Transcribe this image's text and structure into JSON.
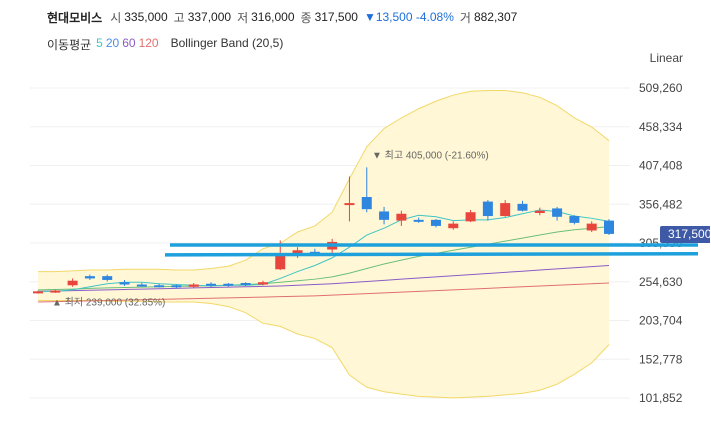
{
  "header": {
    "name": "현대모비스",
    "open_label": "시",
    "open": "335,000",
    "high_label": "고",
    "high": "337,000",
    "low_label": "저",
    "low": "316,000",
    "close_label": "종",
    "close": "317,500",
    "change": "▼13,500 -4.08%",
    "volume_label": "거",
    "volume": "882,307"
  },
  "indicators": {
    "ma_label": "이동평균",
    "ma_periods": [
      "5",
      "20",
      "60",
      "120"
    ],
    "ma_colors": [
      "#40c4c4",
      "#4a8fe0",
      "#8a5cc7",
      "#e07070"
    ],
    "bb_label": "Bollinger Band (20,5)"
  },
  "scale_label": "Linear",
  "last_price": "317,500",
  "colors": {
    "up": "#e8453c",
    "down": "#2e86de",
    "band_fill": "#fff7d6",
    "band_line": "#f2d869",
    "trendline": "#1ea0dc",
    "badge": "#3e5aa6"
  },
  "chart_data": {
    "type": "candlestick",
    "yticks": [
      "509,260",
      "458,334",
      "407,408",
      "356,482",
      "305,556",
      "254,630",
      "203,704",
      "152,778",
      "101,852"
    ],
    "ytick_values": [
      509260,
      458334,
      407408,
      356482,
      305556,
      254630,
      203704,
      152778,
      101852
    ],
    "ylim": [
      95000,
      520000
    ],
    "annotations": {
      "high": {
        "value": 405000,
        "text": "▼ 최고 405,000 (-21.60%)"
      },
      "low": {
        "value": 239000,
        "text": "▲ 최저 239,000 (32.85%)"
      }
    },
    "candles": [
      {
        "o": 241000,
        "h": 243000,
        "l": 239000,
        "c": 242000
      },
      {
        "o": 242000,
        "h": 244000,
        "l": 240000,
        "c": 243000
      },
      {
        "o": 250000,
        "h": 259000,
        "l": 248000,
        "c": 256000
      },
      {
        "o": 262000,
        "h": 264000,
        "l": 257000,
        "c": 259000
      },
      {
        "o": 262000,
        "h": 264000,
        "l": 255000,
        "c": 257000
      },
      {
        "o": 254000,
        "h": 257000,
        "l": 249000,
        "c": 251000
      },
      {
        "o": 251000,
        "h": 253000,
        "l": 248000,
        "c": 249000
      },
      {
        "o": 250000,
        "h": 252000,
        "l": 247000,
        "c": 248000
      },
      {
        "o": 250000,
        "h": 251000,
        "l": 246000,
        "c": 248000
      },
      {
        "o": 248000,
        "h": 253000,
        "l": 247000,
        "c": 251000
      },
      {
        "o": 252000,
        "h": 254000,
        "l": 248000,
        "c": 250000
      },
      {
        "o": 252000,
        "h": 253000,
        "l": 248000,
        "c": 250000
      },
      {
        "o": 253000,
        "h": 254000,
        "l": 249000,
        "c": 251000
      },
      {
        "o": 251000,
        "h": 256000,
        "l": 250000,
        "c": 254000
      },
      {
        "o": 271000,
        "h": 309000,
        "l": 270000,
        "c": 289000
      },
      {
        "o": 290000,
        "h": 300000,
        "l": 286000,
        "c": 296000
      },
      {
        "o": 294000,
        "h": 298000,
        "l": 291000,
        "c": 292000
      },
      {
        "o": 297000,
        "h": 311000,
        "l": 291000,
        "c": 307000
      },
      {
        "o": 356000,
        "h": 393000,
        "l": 334000,
        "c": 358000
      },
      {
        "o": 366000,
        "h": 405000,
        "l": 346000,
        "c": 350000
      },
      {
        "o": 347000,
        "h": 353000,
        "l": 330000,
        "c": 336000
      },
      {
        "o": 335000,
        "h": 348000,
        "l": 328000,
        "c": 344000
      },
      {
        "o": 336000,
        "h": 339000,
        "l": 332000,
        "c": 334000
      },
      {
        "o": 336000,
        "h": 337000,
        "l": 326000,
        "c": 328000
      },
      {
        "o": 325000,
        "h": 334000,
        "l": 323000,
        "c": 331000
      },
      {
        "o": 334000,
        "h": 349000,
        "l": 333000,
        "c": 346000
      },
      {
        "o": 360000,
        "h": 362000,
        "l": 335000,
        "c": 341000
      },
      {
        "o": 341000,
        "h": 362000,
        "l": 340000,
        "c": 358000
      },
      {
        "o": 357000,
        "h": 361000,
        "l": 347000,
        "c": 348000
      },
      {
        "o": 345000,
        "h": 352000,
        "l": 342000,
        "c": 348000
      },
      {
        "o": 351000,
        "h": 353000,
        "l": 335000,
        "c": 340000
      },
      {
        "o": 341000,
        "h": 342000,
        "l": 330000,
        "c": 332000
      },
      {
        "o": 322000,
        "h": 334000,
        "l": 320000,
        "c": 331000
      },
      {
        "o": 335000,
        "h": 337000,
        "l": 316000,
        "c": 317500
      }
    ],
    "bollinger_upper": [
      268000,
      268000,
      269000,
      270000,
      270000,
      271000,
      271000,
      271000,
      270000,
      270000,
      272000,
      275000,
      283000,
      298000,
      305000,
      320000,
      328000,
      346000,
      390000,
      432000,
      456000,
      470000,
      482000,
      492000,
      500000,
      505000,
      506000,
      506000,
      503000,
      497000,
      486000,
      470000,
      458000,
      440000
    ],
    "bollinger_lower": [
      230000,
      230000,
      230000,
      230000,
      229000,
      229000,
      229000,
      228000,
      228000,
      228000,
      226000,
      222000,
      214000,
      200000,
      196000,
      186000,
      180000,
      168000,
      132000,
      116000,
      110000,
      107000,
      104000,
      103000,
      102000,
      103000,
      104000,
      106000,
      108000,
      112000,
      120000,
      133000,
      148000,
      172000
    ],
    "ma5": [
      242000,
      242000,
      244000,
      248000,
      252000,
      254000,
      254000,
      252000,
      251000,
      250000,
      249000,
      250000,
      250000,
      251000,
      259000,
      268000,
      276000,
      286000,
      300000,
      316000,
      325000,
      336000,
      342000,
      340000,
      335000,
      336000,
      336000,
      339000,
      344000,
      349000,
      347000,
      341000,
      338000,
      334000
    ],
    "ma20": [
      244000,
      244500,
      245000,
      246000,
      246500,
      247000,
      247500,
      248000,
      248500,
      249000,
      249500,
      250000,
      251000,
      252000,
      254000,
      256000,
      258000,
      261000,
      266000,
      272000,
      278000,
      283000,
      288000,
      292000,
      296000,
      300000,
      304000,
      308000,
      312000,
      316000,
      320000,
      323000,
      325000,
      327000
    ],
    "ma60": [
      242000,
      242500,
      243000,
      243500,
      244000,
      244500,
      245000,
      245500,
      246000,
      246500,
      247000,
      247500,
      248000,
      248500,
      249000,
      250000,
      251000,
      252000,
      253500,
      255000,
      256500,
      258000,
      259500,
      261000,
      262500,
      264000,
      265500,
      267000,
      268500,
      270000,
      271500,
      273000,
      274500,
      276000
    ],
    "ma120": [
      228000,
      228500,
      229000,
      229500,
      230000,
      230500,
      231000,
      231500,
      232000,
      232500,
      233000,
      233500,
      234000,
      234500,
      235000,
      235500,
      236000,
      237000,
      238000,
      239000,
      240000,
      241000,
      242000,
      243000,
      244000,
      245000,
      246000,
      247000,
      248000,
      249000,
      250000,
      251000,
      252000,
      253000
    ],
    "trendlines": [
      {
        "v0": 303000,
        "v1": 303000
      },
      {
        "v0": 290000,
        "v1": 291500
      }
    ]
  }
}
